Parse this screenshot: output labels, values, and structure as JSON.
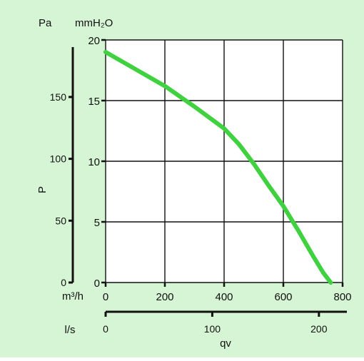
{
  "chart_data": {
    "type": "line",
    "title": "",
    "background": "#d6f5d4",
    "line_color": "#3fd13f",
    "grid": true,
    "xlabel": "qv",
    "ylabel": "P",
    "x_axes": [
      {
        "unit": "m³/h",
        "range": [
          0,
          800
        ],
        "ticks": [
          0,
          200,
          400,
          600,
          800
        ],
        "tick_labels": [
          "0",
          "200",
          "400",
          "600",
          "800"
        ]
      },
      {
        "unit": "l/s",
        "range": [
          0,
          222.2
        ],
        "ticks": [
          0,
          100,
          200
        ],
        "tick_labels": [
          "0",
          "100",
          "200"
        ]
      }
    ],
    "y_axes": [
      {
        "unit": "Pa",
        "range": [
          0,
          196.1
        ],
        "ticks": [
          0,
          50,
          100,
          150
        ],
        "tick_labels": [
          "0",
          "50",
          "100",
          "150"
        ]
      },
      {
        "unit": "mmH₂O",
        "range": [
          0,
          20
        ],
        "ticks": [
          0,
          5,
          10,
          15,
          20
        ],
        "tick_labels": [
          "0",
          "5",
          "10",
          "15",
          "20"
        ]
      }
    ],
    "series": [
      {
        "x_unit": "m³/h",
        "y_unit": "mmH₂O",
        "x": [
          0,
          100,
          200,
          300,
          400,
          450,
          500,
          550,
          600,
          650,
          700,
          735,
          760
        ],
        "y": [
          19,
          17.6,
          16.2,
          14.5,
          12.7,
          11.4,
          9.8,
          8.0,
          6.3,
          4.3,
          2.2,
          0.8,
          0
        ]
      }
    ]
  }
}
